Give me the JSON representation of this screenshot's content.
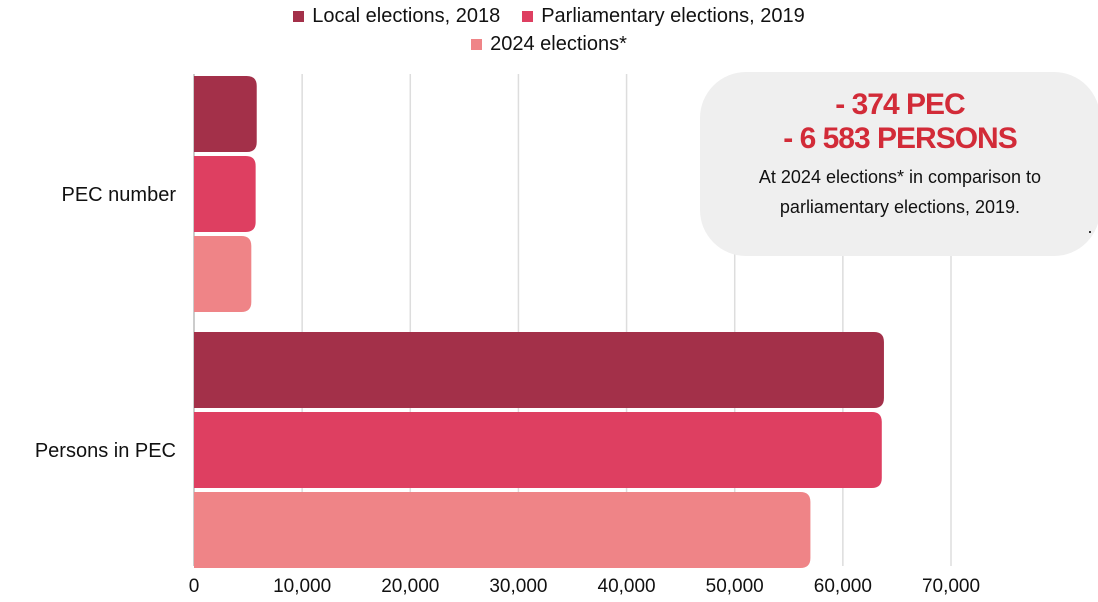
{
  "colors": {
    "local_2018": "#a33049",
    "parliamentary_2019": "#de3f61",
    "elections_2024": "#ef8487",
    "callout_accent": "#d22b38",
    "grid": "#dddddd"
  },
  "legend": {
    "items": [
      {
        "label": "Local elections, 2018",
        "color": "#a33049"
      },
      {
        "label": "Parliamentary elections, 2019",
        "color": "#de3f61"
      },
      {
        "label": "2024 elections*",
        "color": "#ef8487"
      }
    ]
  },
  "callout": {
    "line1": "- 374 PEC",
    "line2": "- 6 583 PERSONS",
    "text1": "At 2024 elections* in comparison to",
    "text2": "parliamentary elections, 2019.",
    "dot": "."
  },
  "chart_data": {
    "type": "bar",
    "orientation": "horizontal",
    "categories": [
      "PEC number",
      "Persons in PEC"
    ],
    "series": [
      {
        "name": "Local elections, 2018",
        "values": [
          5800,
          63800
        ]
      },
      {
        "name": "Parliamentary elections, 2019",
        "values": [
          5700,
          63600
        ]
      },
      {
        "name": "2024 elections*",
        "values": [
          5300,
          57000
        ]
      }
    ],
    "xlim": [
      0,
      70000
    ],
    "xticks": [
      0,
      10000,
      20000,
      30000,
      40000,
      50000,
      60000,
      70000
    ],
    "xtick_labels": [
      "0",
      "10,000",
      "20,000",
      "30,000",
      "40,000",
      "50,000",
      "60,000",
      "70,000"
    ],
    "grid": true,
    "legend_position": "top-center"
  }
}
